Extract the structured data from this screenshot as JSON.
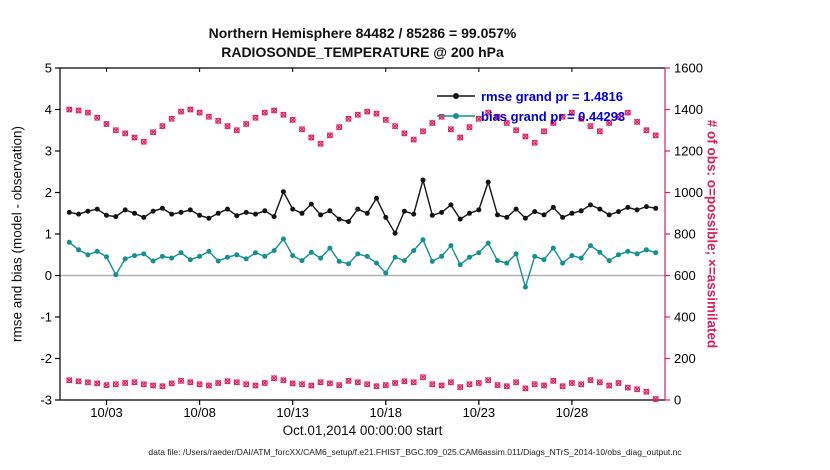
{
  "header": {
    "title_line1": "Northern Hemisphere 84482 / 85286 = 99.057%",
    "title_line2": "RADIOSONDE_TEMPERATURE @ 200 hPa"
  },
  "axes": {
    "left_label": "rmse and bias (model - observation)",
    "right_label": "# of obs: o=possible; ×=assimilated",
    "x_label": "Oct.01,2014 00:00:00 start"
  },
  "legend": {
    "text_color": "#0000e0",
    "entries": [
      {
        "label": "rmse grand pr = 1.4816",
        "color": "#141414"
      },
      {
        "label": "bias grand pr = 0.44293",
        "color": "#139090"
      }
    ]
  },
  "footer": {
    "text": "data file: /Users/raeder/DAI/ATM_forcXX/CAM6_setup/f.e21.FHIST_BGC.f09_025.CAM6assim.011/Diags_NTrS_2014-10/obs_diag_output.nc"
  },
  "colors": {
    "obs": "#da2061",
    "rmse": "#141414",
    "bias": "#139090",
    "zero_line": "#b0b0b0",
    "axis": "#000000"
  },
  "chart_data": {
    "type": "line",
    "title": "Northern Hemisphere RADIOSONDE_TEMPERATURE @ 200 hPa",
    "x_unit": "days since Oct 01, 2014 00:00:00",
    "x_start": 0,
    "x_step": 0.5,
    "x_axis": {
      "min": -0.5,
      "max": 32,
      "ticks": [
        {
          "pos": 2,
          "label": "10/03"
        },
        {
          "pos": 7,
          "label": "10/08"
        },
        {
          "pos": 12,
          "label": "10/13"
        },
        {
          "pos": 17,
          "label": "10/18"
        },
        {
          "pos": 22,
          "label": "10/23"
        },
        {
          "pos": 27,
          "label": "10/28"
        }
      ]
    },
    "y_left_axis": {
      "min": -3,
      "max": 5,
      "ticks": [
        -3,
        -2,
        -1,
        0,
        1,
        2,
        3,
        4,
        5
      ]
    },
    "y_right_axis": {
      "min": 0,
      "max": 1600,
      "ticks": [
        0,
        200,
        400,
        600,
        800,
        1000,
        1200,
        1400,
        1600
      ]
    },
    "zero_line": 0,
    "series": [
      {
        "name": "rmse",
        "axis": "left",
        "marker": "filled-circle",
        "grand_mean": 1.4816,
        "values": [
          1.52,
          1.48,
          1.55,
          1.6,
          1.45,
          1.42,
          1.58,
          1.5,
          1.4,
          1.55,
          1.62,
          1.48,
          1.52,
          1.58,
          1.45,
          1.38,
          1.5,
          1.6,
          1.44,
          1.52,
          1.48,
          1.56,
          1.42,
          2.02,
          1.6,
          1.5,
          1.72,
          1.46,
          1.56,
          1.36,
          1.3,
          1.6,
          1.5,
          1.86,
          1.4,
          1.02,
          1.55,
          1.48,
          2.3,
          1.45,
          1.52,
          1.7,
          1.36,
          1.5,
          1.58,
          2.25,
          1.46,
          1.4,
          1.6,
          1.38,
          1.54,
          1.46,
          1.64,
          1.4,
          1.5,
          1.56,
          1.7,
          1.6,
          1.46,
          1.54,
          1.64,
          1.58,
          1.66,
          1.62
        ]
      },
      {
        "name": "bias",
        "axis": "left",
        "marker": "filled-circle",
        "grand_mean": 0.44293,
        "values": [
          0.8,
          0.62,
          0.5,
          0.58,
          0.45,
          0.02,
          0.4,
          0.48,
          0.52,
          0.35,
          0.46,
          0.42,
          0.55,
          0.38,
          0.46,
          0.58,
          0.35,
          0.44,
          0.5,
          0.4,
          0.55,
          0.46,
          0.6,
          0.88,
          0.48,
          0.36,
          0.56,
          0.42,
          0.66,
          0.34,
          0.28,
          0.52,
          0.46,
          0.3,
          0.06,
          0.44,
          0.36,
          0.6,
          0.86,
          0.34,
          0.46,
          0.72,
          0.26,
          0.44,
          0.55,
          0.78,
          0.36,
          0.3,
          0.52,
          -0.28,
          0.46,
          0.38,
          0.66,
          0.3,
          0.48,
          0.42,
          0.72,
          0.56,
          0.36,
          0.5,
          0.58,
          0.52,
          0.62,
          0.55
        ]
      },
      {
        "name": "obs-count-upper",
        "axis": "right",
        "marker": "o-and-x",
        "values": [
          1400,
          1395,
          1385,
          1360,
          1330,
          1300,
          1285,
          1265,
          1245,
          1290,
          1320,
          1355,
          1390,
          1400,
          1385,
          1365,
          1345,
          1320,
          1300,
          1330,
          1360,
          1385,
          1395,
          1375,
          1350,
          1305,
          1265,
          1235,
          1275,
          1315,
          1355,
          1375,
          1390,
          1380,
          1350,
          1320,
          1285,
          1255,
          1295,
          1335,
          1365,
          1305,
          1265,
          1315,
          1355,
          1385,
          1365,
          1335,
          1300,
          1270,
          1240,
          1295,
          1335,
          1365,
          1385,
          1355,
          1320,
          1295,
          1335,
          1365,
          1385,
          1340,
          1300,
          1275
        ]
      },
      {
        "name": "obs-count-lower",
        "axis": "right",
        "marker": "o-and-x",
        "values": [
          95,
          90,
          85,
          80,
          72,
          76,
          82,
          86,
          76,
          70,
          66,
          80,
          92,
          86,
          76,
          70,
          82,
          90,
          86,
          76,
          70,
          82,
          105,
          95,
          80,
          76,
          70,
          86,
          80,
          72,
          92,
          86,
          76,
          66,
          72,
          82,
          90,
          86,
          110,
          76,
          70,
          86,
          62,
          76,
          82,
          96,
          72,
          66,
          86,
          56,
          76,
          70,
          92,
          66,
          82,
          76,
          96,
          86,
          70,
          82,
          60,
          52,
          40,
          5
        ]
      }
    ]
  }
}
